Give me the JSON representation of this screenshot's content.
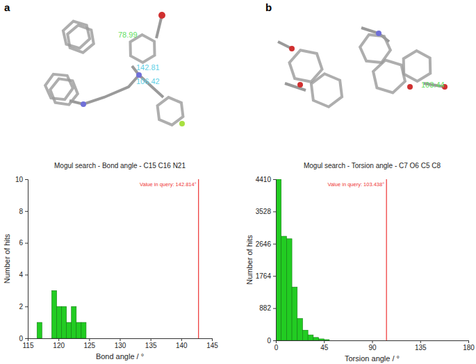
{
  "panels": [
    {
      "label": "a",
      "annotations": [
        {
          "text": "78.99",
          "color": "#5fe05f"
        },
        {
          "text": "142.81",
          "color": "#5fd0e6"
        },
        {
          "text": "106.42",
          "color": "#5fd0e6"
        }
      ]
    },
    {
      "label": "b",
      "annotations": [
        {
          "text": "103.44",
          "color": "#5fe05f"
        }
      ]
    }
  ],
  "chart_data": [
    {
      "type": "histogram",
      "title": "Mogul search - Bond angle - C15 C16 N21",
      "x_label": "Bond angle / °",
      "y_label": "Number of hits",
      "bins": [
        116.5,
        117.3,
        118.1,
        118.9,
        119.7,
        120.5,
        121.3,
        122.1,
        122.9,
        123.7,
        124.5
      ],
      "counts": [
        1,
        0,
        0,
        3,
        2,
        2,
        1,
        2,
        1,
        1
      ],
      "color": "#22cc22",
      "xlim": [
        115,
        145
      ],
      "xticks": [
        115,
        120,
        125,
        130,
        135,
        140,
        145
      ],
      "ylim": [
        0,
        10
      ],
      "yticks": [
        0,
        2,
        4,
        6,
        8,
        10
      ],
      "query_line": {
        "value": 142.814,
        "label": "Value in query: 142.814°",
        "color": "#ee3333"
      }
    },
    {
      "type": "histogram",
      "title": "Mogul search - Torsion angle - C7 O6 C5 C8",
      "x_label": "Torsion angle / °",
      "y_label": "Number of hits",
      "bins": [
        0,
        5,
        10,
        15,
        20,
        25,
        30,
        35,
        40,
        45,
        50
      ],
      "counts": [
        4410,
        2850,
        2780,
        1460,
        600,
        280,
        150,
        80,
        40,
        20
      ],
      "color": "#22cc22",
      "xlim": [
        0,
        180
      ],
      "xticks": [
        0,
        45,
        90,
        135,
        180
      ],
      "ylim": [
        0,
        4410
      ],
      "yticks": [
        0,
        882,
        1764,
        2646,
        3528,
        4410
      ],
      "query_line": {
        "value": 103.438,
        "label": "Value in query: 103.438°",
        "color": "#ee3333"
      }
    }
  ]
}
